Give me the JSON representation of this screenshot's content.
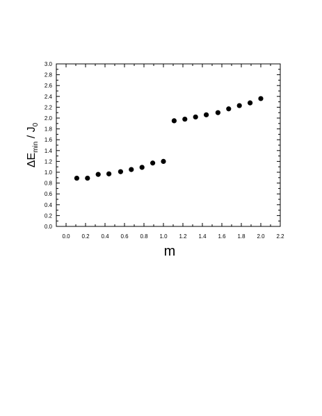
{
  "chart_data": {
    "type": "scatter",
    "title": "",
    "xlabel": "m",
    "ylabel": {
      "base": "ΔE",
      "subscript": "min",
      "separator": " / J",
      "subscript2": "0"
    },
    "xlim": [
      -0.1,
      2.2
    ],
    "ylim": [
      0.0,
      3.0
    ],
    "xticks": [
      "0.0",
      "0.2",
      "0.4",
      "0.6",
      "0.8",
      "1.0",
      "1.2",
      "1.4",
      "1.6",
      "1.8",
      "2.0",
      "2.2"
    ],
    "xtick_values": [
      0.0,
      0.2,
      0.4,
      0.6,
      0.8,
      1.0,
      1.2,
      1.4,
      1.6,
      1.8,
      2.0,
      2.2
    ],
    "yticks": [
      "0.0",
      "0.2",
      "0.4",
      "0.6",
      "0.8",
      "1.0",
      "1.2",
      "1.4",
      "1.6",
      "1.8",
      "2.0",
      "2.2",
      "2.4",
      "2.6",
      "2.8",
      "3.0"
    ],
    "ytick_values": [
      0.0,
      0.2,
      0.4,
      0.6,
      0.8,
      1.0,
      1.2,
      1.4,
      1.6,
      1.8,
      2.0,
      2.2,
      2.4,
      2.6,
      2.8,
      3.0
    ],
    "grid": false,
    "legend": "none",
    "marker_color": "#000000",
    "series": [
      {
        "x": [
          0.11,
          0.22,
          0.33,
          0.44,
          0.56,
          0.67,
          0.78,
          0.89,
          1.0,
          1.11,
          1.22,
          1.33,
          1.44,
          1.56,
          1.67,
          1.78,
          1.89,
          2.0
        ],
        "y": [
          0.89,
          0.89,
          0.96,
          0.97,
          1.01,
          1.05,
          1.09,
          1.17,
          1.2,
          1.95,
          1.98,
          2.02,
          2.06,
          2.1,
          2.17,
          2.23,
          2.28,
          2.36
        ]
      }
    ]
  }
}
